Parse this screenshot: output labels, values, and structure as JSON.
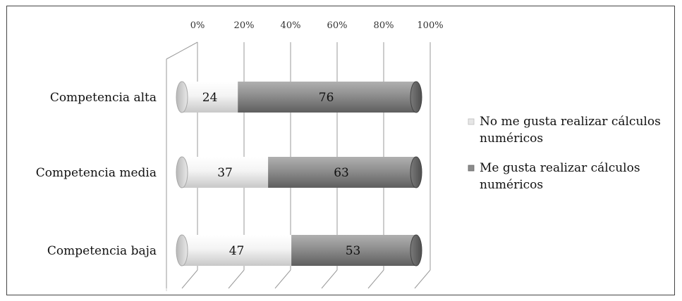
{
  "chart_data": {
    "type": "bar",
    "orientation": "horizontal",
    "stacked": "percent",
    "categories": [
      "Competencia alta",
      "Competencia media",
      "Competencia baja"
    ],
    "series": [
      {
        "name": "No me gusta realizar cálculos numéricos",
        "values": [
          24,
          37,
          47
        ],
        "color": "#f2f2f2"
      },
      {
        "name": "Me gusta realizar cálculos numéricos",
        "values": [
          76,
          63,
          53
        ],
        "color": "#8c8c8c"
      }
    ],
    "xticks": [
      "0%",
      "20%",
      "40%",
      "60%",
      "80%",
      "100%"
    ],
    "xlim": [
      0,
      100
    ],
    "grid": true,
    "legend": "right"
  }
}
